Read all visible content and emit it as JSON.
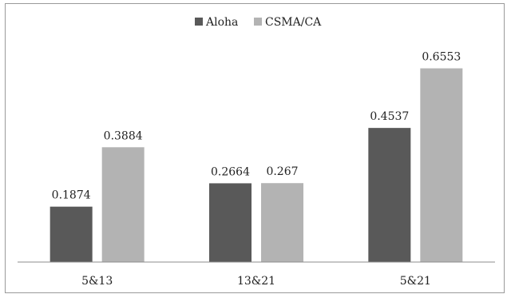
{
  "chart_data": {
    "type": "bar",
    "categories": [
      "5&13",
      "13&21",
      "5&21"
    ],
    "series": [
      {
        "name": "Aloha",
        "values": [
          0.1874,
          0.2664,
          0.4537
        ],
        "labels": [
          "0.1874",
          "0.2664",
          "0.4537"
        ],
        "color": "#595959"
      },
      {
        "name": "CSMA/CA",
        "values": [
          0.3884,
          0.267,
          0.6553
        ],
        "labels": [
          "0.3884",
          "0.267",
          "0.6553"
        ],
        "color": "#b3b3b3"
      }
    ],
    "title": "",
    "xlabel": "",
    "ylabel": "",
    "ylim": [
      0,
      0.7
    ],
    "grid": false,
    "legend": "top-center"
  }
}
